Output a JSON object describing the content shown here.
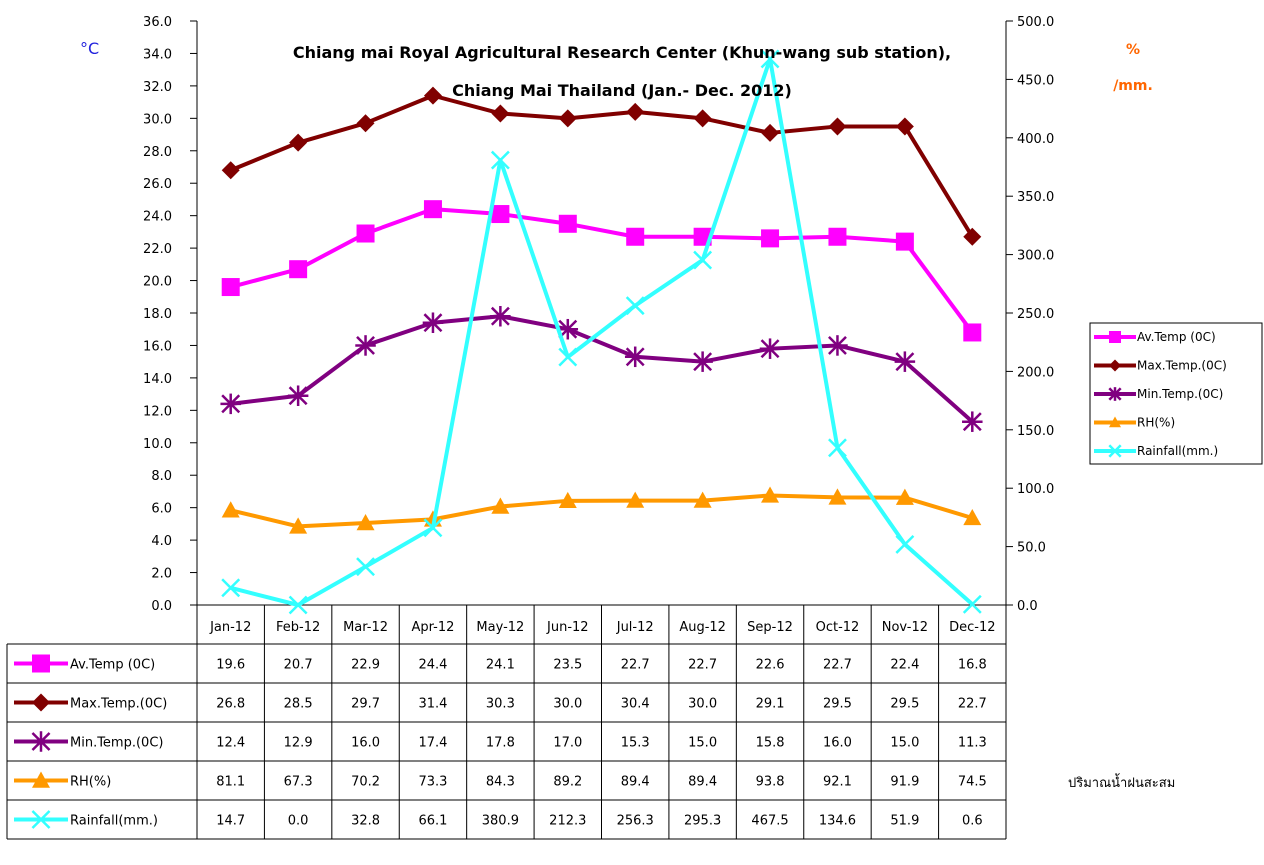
{
  "chart_data": {
    "type": "line",
    "title_line1": "Chiang mai Royal Agricultural Research Center (Khun-wang sub station),",
    "title_line2": "Chiang Mai Thailand (Jan.- Dec. 2012)",
    "y_left_unit": "°C",
    "y_right_unit_line1": "%",
    "y_right_unit_line2": "/mm.",
    "y_left_range": [
      0,
      36
    ],
    "y_left_step": 2,
    "y_right_range": [
      0,
      500
    ],
    "y_right_step": 50,
    "grid": false,
    "legend_position": "right",
    "categories": [
      "Jan-12",
      "Feb-12",
      "Mar-12",
      "Apr-12",
      "May-12",
      "Jun-12",
      "Jul-12",
      "Aug-12",
      "Sep-12",
      "Oct-12",
      "Nov-12",
      "Dec-12"
    ],
    "series": [
      {
        "name": "Av.Temp (0C)",
        "axis": "left",
        "color": "#ff00ff",
        "marker": "square",
        "values": [
          19.6,
          20.7,
          22.9,
          24.4,
          24.1,
          23.5,
          22.7,
          22.7,
          22.6,
          22.7,
          22.4,
          16.8
        ]
      },
      {
        "name": "Max.Temp.(0C)",
        "axis": "left",
        "color": "#800000",
        "marker": "diamond",
        "values": [
          26.8,
          28.5,
          29.7,
          31.4,
          30.3,
          30.0,
          30.4,
          30.0,
          29.1,
          29.5,
          29.5,
          22.7
        ]
      },
      {
        "name": "Min.Temp.(0C)",
        "axis": "left",
        "color": "#800080",
        "marker": "star",
        "values": [
          12.4,
          12.9,
          16.0,
          17.4,
          17.8,
          17.0,
          15.3,
          15.0,
          15.8,
          16.0,
          15.0,
          11.3
        ]
      },
      {
        "name": "RH(%)",
        "axis": "right",
        "color": "#ff9900",
        "marker": "triangle",
        "values": [
          81.1,
          67.3,
          70.2,
          73.3,
          84.3,
          89.2,
          89.4,
          89.4,
          93.8,
          92.1,
          91.9,
          74.5
        ]
      },
      {
        "name": "Rainfall(mm.)",
        "axis": "right",
        "color": "#33ffff",
        "marker": "x",
        "values": [
          14.7,
          0.0,
          32.8,
          66.1,
          380.9,
          212.3,
          256.3,
          295.3,
          467.5,
          134.6,
          51.9,
          0.6
        ]
      }
    ],
    "table_values": [
      [
        "19.6",
        "20.7",
        "22.9",
        "24.4",
        "24.1",
        "23.5",
        "22.7",
        "22.7",
        "22.6",
        "22.7",
        "22.4",
        "16.8"
      ],
      [
        "26.8",
        "28.5",
        "29.7",
        "31.4",
        "30.3",
        "30.0",
        "30.4",
        "30.0",
        "29.1",
        "29.5",
        "29.5",
        "22.7"
      ],
      [
        "12.4",
        "12.9",
        "16.0",
        "17.4",
        "17.8",
        "17.0",
        "15.3",
        "15.0",
        "15.8",
        "16.0",
        "15.0",
        "11.3"
      ],
      [
        "81.1",
        "67.3",
        "70.2",
        "73.3",
        "84.3",
        "89.2",
        "89.4",
        "89.4",
        "93.8",
        "92.1",
        "91.9",
        "74.5"
      ],
      [
        "14.7",
        "0.0",
        "32.8",
        "66.1",
        "380.9",
        "212.3",
        "256.3",
        "295.3",
        "467.5",
        "134.6",
        "51.9",
        "0.6"
      ]
    ],
    "note": "ปริมาณน้ำฝนสะสม"
  }
}
